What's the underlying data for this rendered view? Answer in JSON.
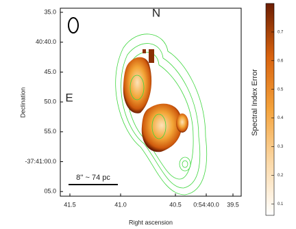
{
  "chart_data": {
    "type": "image",
    "xlabel": "Right ascension",
    "ylabel": "Declination",
    "xtick_labels": [
      "41.5",
      "41.0",
      "40.5",
      "0:54:40.0",
      "39.5"
    ],
    "ytick_labels": [
      "35.0",
      "40:40.0",
      "45.0",
      "50.0",
      "55.0",
      "-37:41:00.0",
      "05.0"
    ],
    "annotations": [
      "N",
      "E",
      "8'' ~ 74 pc"
    ],
    "colorbar": {
      "label": "Spectral Index Error",
      "lim": [
        0.06,
        0.8
      ],
      "ticks": [
        0.1,
        0.2,
        0.3,
        0.4,
        0.5,
        0.6,
        0.7
      ]
    }
  }
}
